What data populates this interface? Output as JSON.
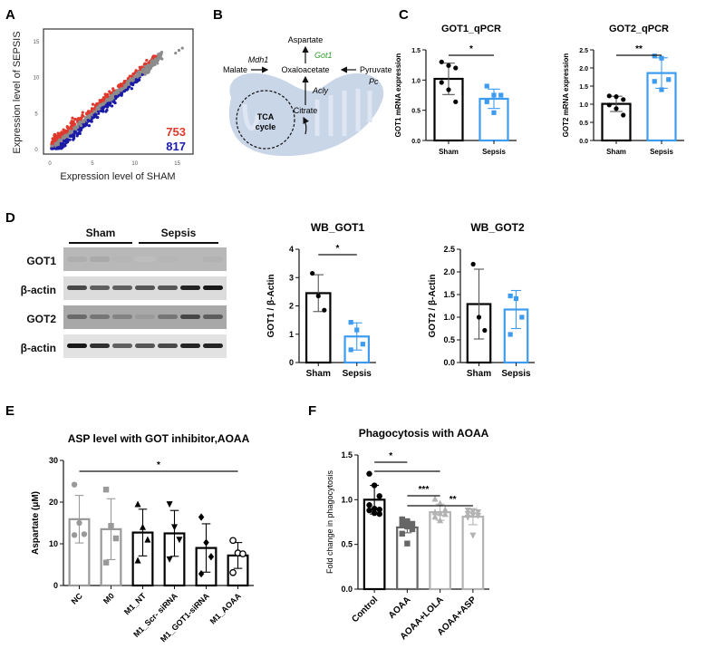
{
  "panels": {
    "A": "A",
    "B": "B",
    "C": "C",
    "D": "D",
    "E": "E",
    "F": "F"
  },
  "colors": {
    "sham": "#000000",
    "sepsis": "#3d9bf0",
    "up": "#e0382c",
    "down": "#1a1aa8",
    "neutral": "#8c8c8c",
    "got1_green": "#2aa02a",
    "mito_fill": "#c9d6e8",
    "gray_bar": "#999999",
    "dark_gray_bar": "#666666",
    "light_gray_bar": "#b3b3b3"
  },
  "pathway": {
    "aspartate": "Aspartate",
    "got1": "Got1",
    "mdh1": "Mdh1",
    "malate": "Malate",
    "oxaloacetate": "Oxaloacetate",
    "pyruvate": "Pyruvate",
    "pc": "Pc",
    "acly": "Acly",
    "citrate": "Citrate",
    "tca_line1": "TCA",
    "tca_line2": "cycle"
  },
  "western": {
    "group_labels": [
      "Sham",
      "Sepsis"
    ],
    "row_labels": [
      "GOT1",
      "β-actin",
      "GOT2",
      "β-actin"
    ],
    "lanes_per_group": [
      3,
      4
    ]
  },
  "chart_data": [
    {
      "id": "A",
      "type": "scatter",
      "title": "",
      "xlabel": "Expression level of SHAM",
      "ylabel": "Expression level of SEPSIS",
      "xlim": [
        0,
        16
      ],
      "ylim": [
        0,
        16
      ],
      "xticks": [
        "0",
        "5",
        "10",
        "15"
      ],
      "yticks": [
        "0",
        "5",
        "10",
        "15"
      ],
      "annotations": [
        {
          "text": "753",
          "color": "#e0382c",
          "meaning": "upregulated genes"
        },
        {
          "text": "817",
          "color": "#1a1aa8",
          "meaning": "downregulated genes"
        }
      ]
    },
    {
      "id": "C1",
      "type": "bar",
      "title": "GOT1_qPCR",
      "ylabel": "GOT1 mRNA expression",
      "categories": [
        "Sham",
        "Sepsis"
      ],
      "values": [
        1.02,
        0.69
      ],
      "error": [
        0.26,
        0.16
      ],
      "points": [
        [
          1.3,
          1.24,
          1.2,
          0.96,
          0.84,
          0.64
        ],
        [
          0.9,
          0.75,
          0.75,
          0.64,
          0.46
        ]
      ],
      "ylim": [
        0,
        1.5
      ],
      "yticks": [
        "0.0",
        "0.5",
        "1.0",
        "1.5"
      ],
      "significance": [
        {
          "from": 0,
          "to": 1,
          "label": "*"
        }
      ]
    },
    {
      "id": "C2",
      "type": "bar",
      "title": "GOT2_qPCR",
      "ylabel": "GOT2 mRNA expression",
      "categories": [
        "Sham",
        "Sepsis"
      ],
      "values": [
        1.01,
        1.86
      ],
      "error": [
        0.21,
        0.42
      ],
      "points": [
        [
          1.23,
          1.21,
          1.13,
          0.98,
          0.88,
          0.7
        ],
        [
          2.33,
          2.27,
          1.68,
          1.63,
          1.4
        ]
      ],
      "ylim": [
        0,
        2.5
      ],
      "yticks": [
        "0.0",
        "0.5",
        "1.0",
        "1.5",
        "2.0",
        "2.5"
      ],
      "significance": [
        {
          "from": 0,
          "to": 1,
          "label": "**"
        }
      ]
    },
    {
      "id": "D1",
      "type": "bar",
      "title": "WB_GOT1",
      "ylabel": "GOT1 / β-Actin",
      "categories": [
        "Sham",
        "Sepsis"
      ],
      "values": [
        2.45,
        0.92
      ],
      "error": [
        0.65,
        0.48
      ],
      "points": [
        [
          3.15,
          2.35,
          1.85
        ],
        [
          1.42,
          1.15,
          0.65,
          0.45
        ]
      ],
      "ylim": [
        0,
        4
      ],
      "yticks": [
        "0",
        "1",
        "2",
        "3",
        "4"
      ],
      "significance": [
        {
          "from": 0,
          "to": 1,
          "label": "*"
        }
      ]
    },
    {
      "id": "D2",
      "type": "bar",
      "title": "WB_GOT2",
      "ylabel": "GOT2 / β-Actin",
      "categories": [
        "Sham",
        "Sepsis"
      ],
      "values": [
        1.29,
        1.17
      ],
      "error": [
        0.77,
        0.42
      ],
      "points": [
        [
          2.17,
          1.0,
          0.71
        ],
        [
          1.47,
          1.41,
          1.0,
          0.62
        ]
      ],
      "ylim": [
        0,
        2.5
      ],
      "yticks": [
        "0.0",
        "0.5",
        "1.0",
        "1.5",
        "2.0",
        "2.5"
      ],
      "significance": []
    },
    {
      "id": "E",
      "type": "bar",
      "title": "ASP level with GOT inhibitor,AOAA",
      "ylabel": "Aspartate (μM)",
      "categories": [
        "NC",
        "M0",
        "M1_NT",
        "M1_Scr- siRNA",
        "M1_GOT1-siRNA",
        "M1_AOAA"
      ],
      "values": [
        15.9,
        13.5,
        12.7,
        12.5,
        9.0,
        7.2
      ],
      "error": [
        5.7,
        7.3,
        5.6,
        5.5,
        5.8,
        3.1
      ],
      "points": [
        [
          24.2,
          15.0,
          12.3,
          12.1
        ],
        [
          23.0,
          14.3,
          11.3,
          5.5
        ],
        [
          19.5,
          14.0,
          11.0,
          6.0
        ],
        [
          19.5,
          14.0,
          11.0,
          6.3
        ],
        [
          16.4,
          10.3,
          6.9,
          2.8
        ],
        [
          10.8,
          7.8,
          7.6,
          3.1
        ]
      ],
      "markers": [
        "circle",
        "square",
        "triangle-up",
        "triangle-down",
        "diamond",
        "open-circle"
      ],
      "bar_colors": [
        "#999999",
        "#999999",
        "#000000",
        "#000000",
        "#000000",
        "#000000"
      ],
      "ylim": [
        0,
        30
      ],
      "yticks": [
        "0",
        "10",
        "20",
        "30"
      ],
      "significance": [
        {
          "from": 0,
          "to": 5,
          "label": "*"
        }
      ]
    },
    {
      "id": "F",
      "type": "bar",
      "title": "Phagocytosis with  AOAA",
      "ylabel": "Fold change in phagocytosis",
      "categories": [
        "Control",
        "AOAA",
        "AOAA+LOLA",
        "AOAA+ASP"
      ],
      "values": [
        1.0,
        0.69,
        0.86,
        0.81
      ],
      "error": [
        0.16,
        0.06,
        0.09,
        0.09
      ],
      "points": [
        [
          1.29,
          1.16,
          1.04,
          0.94,
          0.9,
          0.89,
          0.88,
          0.85,
          0.84
        ],
        [
          0.78,
          0.76,
          0.73,
          0.72,
          0.7,
          0.67,
          0.62,
          0.51
        ],
        [
          1.01,
          0.96,
          0.89,
          0.86,
          0.85,
          0.84,
          0.81,
          0.77
        ],
        [
          0.88,
          0.87,
          0.86,
          0.84,
          0.83,
          0.82,
          0.8,
          0.6
        ]
      ],
      "markers": [
        "circle",
        "square",
        "triangle-up",
        "triangle-down"
      ],
      "bar_colors": [
        "#000000",
        "#666666",
        "#b3b3b3",
        "#b3b3b3"
      ],
      "ylim": [
        0,
        1.5
      ],
      "yticks": [
        "0.0",
        "0.5",
        "1.0",
        "1.5"
      ],
      "significance": [
        {
          "from": 0,
          "to": 1,
          "label": "*"
        },
        {
          "from": 0,
          "to": 2,
          "label": ""
        },
        {
          "from": 1,
          "to": 2,
          "label": "***"
        },
        {
          "from": 1,
          "to": 3,
          "label": "**"
        }
      ]
    }
  ]
}
